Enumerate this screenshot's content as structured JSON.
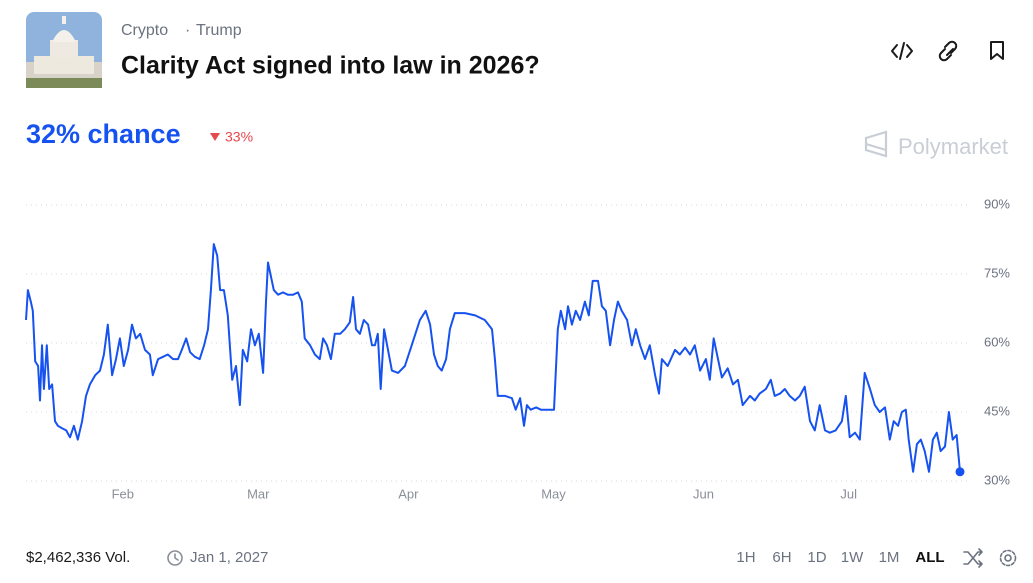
{
  "market": {
    "categories": [
      "Crypto",
      "Trump"
    ],
    "separator": "·",
    "title": "Clarity Act signed into law in 2026?",
    "headline": "32% chance",
    "change": "33%",
    "brand": "Polymarket",
    "volume": "$2,462,336 Vol.",
    "end_date": "Jan 1, 2027",
    "ranges": [
      "1H",
      "6H",
      "1D",
      "1W",
      "1M",
      "ALL"
    ]
  },
  "chart_data": {
    "type": "line",
    "color": "#1652f0",
    "x": [
      0,
      0.4,
      1.0,
      1.4,
      1.9,
      2.5,
      2.9,
      3.3,
      3.7,
      4.3,
      4.8,
      5.4,
      6.0,
      6.6,
      7.4,
      8.3,
      9.1,
      9.9,
      10.7,
      11.6,
      12.4,
      13.2,
      14.3,
      15.3,
      16.1,
      16.9,
      17.8,
      18.6,
      19.4,
      20.2,
      21.1,
      21.9,
      22.7,
      23.6,
      24.6,
      25.6,
      26.2,
      27.3,
      28.3,
      29.3,
      30.4,
      31.4,
      32.2,
      33.1,
      33.9,
      34.9,
      35.9,
      36.8,
      37.6,
      38.2,
      38.8,
      39.5,
      40.1,
      40.9,
      41.7,
      42.6,
      43.4,
      44.2,
      44.8,
      45.7,
      46.5,
      47.3,
      48.1,
      49.0,
      49.6,
      50.0,
      50.6,
      51.2,
      52.1,
      53.1,
      54.1,
      55.2,
      56.2,
      57.0,
      57.6,
      58.7,
      59.7,
      60.7,
      61.4,
      62.2,
      63.0,
      63.8,
      64.9,
      65.9,
      66.9,
      67.6,
      68.2,
      69.0,
      69.8,
      70.7,
      71.5,
      72.1,
      72.7,
      73.3,
      74.0,
      74.8,
      75.6,
      76.9,
      78.3,
      79.7,
      81.4,
      82.6,
      83.5,
      84.3,
      85.1,
      85.9,
      86.8,
      87.6,
      88.6,
      90.7,
      92.8,
      94.8,
      96.3,
      96.9,
      97.5,
      99.0,
      100.4,
      101.2,
      102.1,
      102.9,
      103.5,
      104.3,
      105.4,
      106.4,
      107.8,
      109.1,
      109.9,
      110.5,
      111.4,
      112.0,
      112.8,
      113.6,
      114.5,
      115.5,
      116.3,
      117.1,
      118.2,
      119.0,
      119.8,
      120.7,
      121.5,
      122.3,
      123.1,
      124.2,
      125.2,
      126.0,
      126.9,
      127.9,
      128.9,
      130.0,
      130.8,
      131.4,
      132.6,
      134.1,
      135.1,
      136.2,
      137.2,
      138.2,
      139.3,
      140.5,
      141.3,
      142.1,
      143.0,
      143.8,
      145.0,
      146.1,
      147.1,
      148.1,
      149.6,
      150.6,
      151.6,
      152.9,
      153.9,
      154.7,
      155.8,
      156.8,
      157.8,
      158.9,
      159.9,
      160.9,
      162.0,
      163.0,
      164.0,
      165.1,
      166.1,
      167.3,
      168.6,
      169.4,
      170.2,
      171.3,
      172.3,
      173.3,
      174.4,
      175.4,
      176.4,
      177.5,
      178.5,
      179.3,
      180.2,
      181.0,
      181.8,
      182.4,
      183.3,
      184.1,
      184.9,
      185.7,
      186.6,
      187.4,
      188.2,
      189.0,
      189.9,
      190.7,
      191.5,
      192.3,
      193.0
    ],
    "values": [
      65,
      71.5,
      69,
      67,
      56,
      55,
      47.5,
      59.5,
      50,
      59.5,
      50,
      51,
      43,
      42,
      41.5,
      41,
      39.5,
      42,
      39,
      43,
      48.5,
      51,
      53,
      54,
      57.5,
      64,
      53,
      56.5,
      61,
      55,
      58.5,
      64,
      61,
      62,
      58.5,
      57.5,
      53,
      56.5,
      57,
      57.5,
      56.5,
      56.5,
      58.5,
      61,
      58,
      57,
      56.5,
      59.5,
      63,
      71.5,
      81.5,
      79,
      71.5,
      71.5,
      66,
      52,
      55,
      46.5,
      58.5,
      56,
      63,
      59.5,
      62,
      53.5,
      69,
      77.5,
      74.5,
      71.5,
      70.5,
      71,
      70.5,
      70.5,
      71,
      69,
      61,
      59.5,
      57.5,
      56.5,
      61,
      59.5,
      56.5,
      62,
      62,
      63,
      64.5,
      70,
      63,
      62,
      65,
      64,
      59.5,
      59.5,
      62,
      50,
      63,
      58.5,
      54,
      53.5,
      55,
      59.5,
      65,
      67,
      64,
      57.5,
      55,
      54,
      56.5,
      63,
      66.5,
      66.5,
      66,
      65,
      63,
      56.5,
      48.5,
      48.5,
      48,
      45.5,
      48,
      42,
      46.5,
      45.5,
      46,
      45.5,
      45.5,
      45.5,
      63,
      67,
      63,
      68,
      64,
      67,
      65,
      69,
      66,
      73.5,
      73.5,
      68,
      67,
      59.5,
      65,
      69,
      67,
      65,
      59.5,
      63,
      59.5,
      56.5,
      59.5,
      53,
      49,
      56.5,
      55,
      58.5,
      57.5,
      59,
      57.5,
      59.5,
      54,
      56.5,
      52,
      61,
      56.5,
      52.5,
      54.5,
      51,
      52,
      46.5,
      48.5,
      47.5,
      49,
      50,
      52,
      48.5,
      49,
      50,
      48.5,
      47.5,
      48.5,
      50.5,
      43,
      41,
      46.5,
      41,
      40.5,
      41,
      43,
      48.5,
      39.5,
      40.5,
      39,
      53.5,
      50,
      46.5,
      45,
      46,
      39,
      43,
      42,
      45,
      45.5,
      39,
      32,
      38,
      39,
      36.5,
      32,
      39,
      40.5,
      36.5,
      37.5,
      45,
      39,
      40,
      32
    ],
    "xlim": [
      0,
      193
    ],
    "xticks": [
      {
        "value": 20,
        "label": "Feb"
      },
      {
        "value": 48,
        "label": "Mar"
      },
      {
        "value": 79,
        "label": "Apr"
      },
      {
        "value": 109,
        "label": "May"
      },
      {
        "value": 140,
        "label": "Jun"
      },
      {
        "value": 170,
        "label": "Jul"
      }
    ],
    "ylim": [
      30,
      90
    ],
    "yticks": [
      {
        "value": 30,
        "label": "30%"
      },
      {
        "value": 45,
        "label": "45%"
      },
      {
        "value": 60,
        "label": "60%"
      },
      {
        "value": 75,
        "label": "75%"
      },
      {
        "value": 90,
        "label": "90%"
      }
    ],
    "grid": true
  }
}
